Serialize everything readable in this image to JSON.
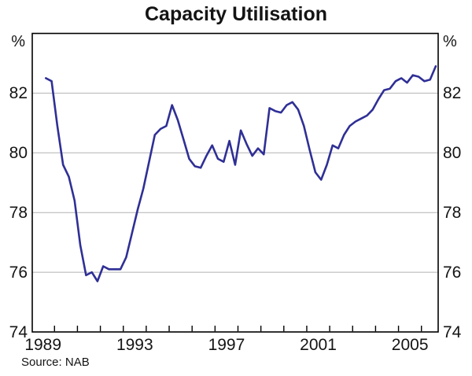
{
  "title": "Capacity Utilisation",
  "source_note": "Source: NAB",
  "y_axis_unit": "%",
  "chart_data": {
    "type": "line",
    "title": "Capacity Utilisation",
    "ylabel": "%",
    "ylim": [
      74,
      84
    ],
    "y_gridlines": [
      76,
      78,
      80,
      82
    ],
    "y_tick_labels": [
      "82",
      "80",
      "78",
      "76",
      "74"
    ],
    "y_tick_values": [
      82,
      80,
      78,
      76,
      74
    ],
    "x_label_years": [
      "1989",
      "1993",
      "1997",
      "2001",
      "2005"
    ],
    "x_tick_mid_years": [
      1989,
      1990,
      1991,
      1992,
      1993,
      1994,
      1995,
      1996,
      1997,
      1998,
      1999,
      2000,
      2001,
      2002,
      2003,
      2004,
      2005
    ],
    "x_range_years": [
      1988.53,
      2006.23
    ],
    "grid_on": true,
    "legend": "none",
    "line_color": "#2f2f96",
    "grid_color": "#b2b2b2",
    "frame_color": "#000000",
    "series": [
      {
        "name": "Capacity utilisation",
        "frequency": "quarterly",
        "start": "1989Q1",
        "end": "2006Q1",
        "values": [
          82.5,
          82.4,
          80.9,
          79.6,
          79.2,
          78.4,
          76.9,
          75.9,
          76.0,
          75.7,
          76.2,
          76.1,
          76.1,
          76.1,
          76.5,
          77.3,
          78.1,
          78.8,
          79.7,
          80.6,
          80.8,
          80.9,
          81.6,
          81.1,
          80.45,
          79.8,
          79.55,
          79.5,
          79.9,
          80.25,
          79.8,
          79.7,
          80.4,
          79.6,
          80.75,
          80.3,
          79.9,
          80.15,
          79.95,
          81.5,
          81.4,
          81.35,
          81.6,
          81.7,
          81.45,
          80.9,
          80.1,
          79.35,
          79.1,
          79.6,
          80.25,
          80.15,
          80.6,
          80.9,
          81.05,
          81.15,
          81.25,
          81.45,
          81.8,
          82.1,
          82.15,
          82.4,
          82.5,
          82.35,
          82.6,
          82.55,
          82.4,
          82.45,
          82.9
        ]
      }
    ],
    "source": "Source: NAB"
  }
}
